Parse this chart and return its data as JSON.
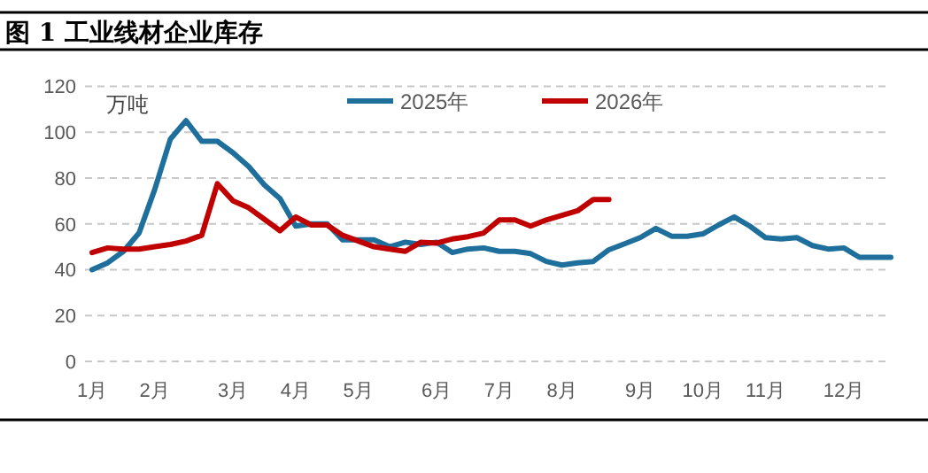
{
  "chart_data": {
    "type": "line",
    "title": "图 1 工业线材企业库存",
    "ylabel": "万吨",
    "categories": [
      "1月",
      null,
      null,
      null,
      "2月",
      null,
      null,
      null,
      null,
      "3月",
      null,
      null,
      null,
      "4月",
      null,
      null,
      null,
      "5月",
      null,
      null,
      null,
      null,
      "6月",
      null,
      null,
      null,
      "7月",
      null,
      null,
      null,
      "8月",
      null,
      null,
      null,
      null,
      "9月",
      null,
      null,
      null,
      "10月",
      null,
      null,
      null,
      "11月",
      null,
      null,
      null,
      null,
      "12月",
      null,
      null,
      null
    ],
    "series": [
      {
        "name": "2025年",
        "color": "#1f6f9c",
        "values": [
          40,
          43,
          48,
          56,
          75,
          97,
          105,
          96,
          96,
          91,
          85,
          77,
          71,
          59,
          60,
          60,
          53,
          53,
          53,
          50,
          52,
          51,
          52,
          47.5,
          49,
          49.5,
          48,
          48,
          47,
          43.6,
          42,
          43,
          43.6,
          48.7,
          51.3,
          54,
          58,
          54.6,
          54.6,
          55.6,
          59.5,
          63,
          59,
          54,
          53.4,
          54,
          50.5,
          49,
          49.5,
          45.4,
          45.4,
          45.4
        ]
      },
      {
        "name": "2026年",
        "color": "#c00000",
        "values": [
          47.5,
          49.5,
          49,
          49,
          50,
          51,
          52.5,
          55,
          77.5,
          70,
          67,
          62,
          57,
          63,
          59.5,
          59.5,
          55,
          52.5,
          50,
          49,
          48,
          52,
          51.6,
          53.4,
          54.4,
          56,
          61.7,
          61.7,
          59,
          61.7,
          63.7,
          65.7,
          70.6,
          70.6,
          null,
          null,
          null,
          null,
          null,
          null,
          null,
          null,
          null,
          null,
          null,
          null,
          null,
          null,
          null,
          null,
          null,
          null
        ]
      }
    ],
    "ylim": [
      0,
      120
    ],
    "yticks": [
      0,
      20,
      40,
      60,
      80,
      100,
      120
    ],
    "grid": "y",
    "legend": "top",
    "marker": "none",
    "line_style": "solid"
  }
}
